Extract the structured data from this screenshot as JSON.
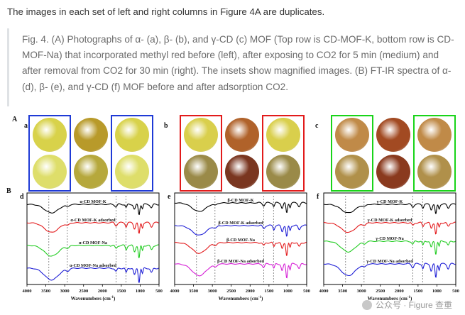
{
  "intro": "The images in each set of left and right columns in Figure 4A are duplicates.",
  "caption": "Fig. 4. (A) Photographs of α- (a), β- (b), and γ-CD (c) MOF (Top row is CD-MOF-K, bottom row is CD-MOF-Na) that incorporated methyl red before (left), after exposing to CO2 for 5 min (medium) and after removal from CO2 for 30 min (right). The insets show magnified images. (B) FT-IR spectra of α- (d), β- (e), and γ-CD (f) MOF before and after adsorption CO2.",
  "figure": {
    "section_a": "A",
    "section_b": "B",
    "panels": [
      {
        "label": "a",
        "frame_color": "#1f3ad6",
        "colors": [
          "#d8d24a",
          "#b89a2a",
          "#d8d24a",
          "#dede6a",
          "#b6a83c",
          "#dede6a"
        ]
      },
      {
        "label": "b",
        "frame_color": "#e21b1b",
        "colors": [
          "#d9cf4c",
          "#b0622a",
          "#d9cf4c",
          "#9a8a48",
          "#7a3620",
          "#9a8a48"
        ]
      },
      {
        "label": "c",
        "frame_color": "#19d419",
        "colors": [
          "#c08a48",
          "#a24a22",
          "#c08a48",
          "#b0904a",
          "#8a3a1e",
          "#b0904a"
        ]
      }
    ],
    "spectra": [
      {
        "label": "d",
        "traces": [
          {
            "name": "α-CD MOF-K",
            "color": "#000000"
          },
          {
            "name": "α-CD MOF-K adsorbed",
            "color": "#e31a1c"
          },
          {
            "name": "α-CD MOF-Na",
            "color": "#22cc22"
          },
          {
            "name": "α-CD MOF-Na adsorbed",
            "color": "#1f1fd6"
          }
        ]
      },
      {
        "label": "e",
        "traces": [
          {
            "name": "β-CD MOF-K",
            "color": "#000000"
          },
          {
            "name": "β-CD MOF-K adsorbed",
            "color": "#1f1fd6"
          },
          {
            "name": "β-CD MOF-Na",
            "color": "#e31a1c"
          },
          {
            "name": "β-CD MOF-Na adsorbed",
            "color": "#d61fd6"
          }
        ]
      },
      {
        "label": "f",
        "traces": [
          {
            "name": "γ-CD MOF-K",
            "color": "#000000"
          },
          {
            "name": "γ-CD MOF-K adsorbed",
            "color": "#e31a1c"
          },
          {
            "name": "γ-CD MOF-Na",
            "color": "#22cc22"
          },
          {
            "name": "γ-CD MOF-Na adsorbed",
            "color": "#1f1fd6"
          }
        ]
      }
    ],
    "x_ticks": [
      "4000",
      "3500",
      "3000",
      "2500",
      "2000",
      "1500",
      "1000",
      "500"
    ],
    "x_axis_label": "Wavenumbers (cm",
    "x_axis_label_sup": "-1",
    "x_axis_label_end": ")"
  },
  "watermark": "公众号 · Figure 查重"
}
